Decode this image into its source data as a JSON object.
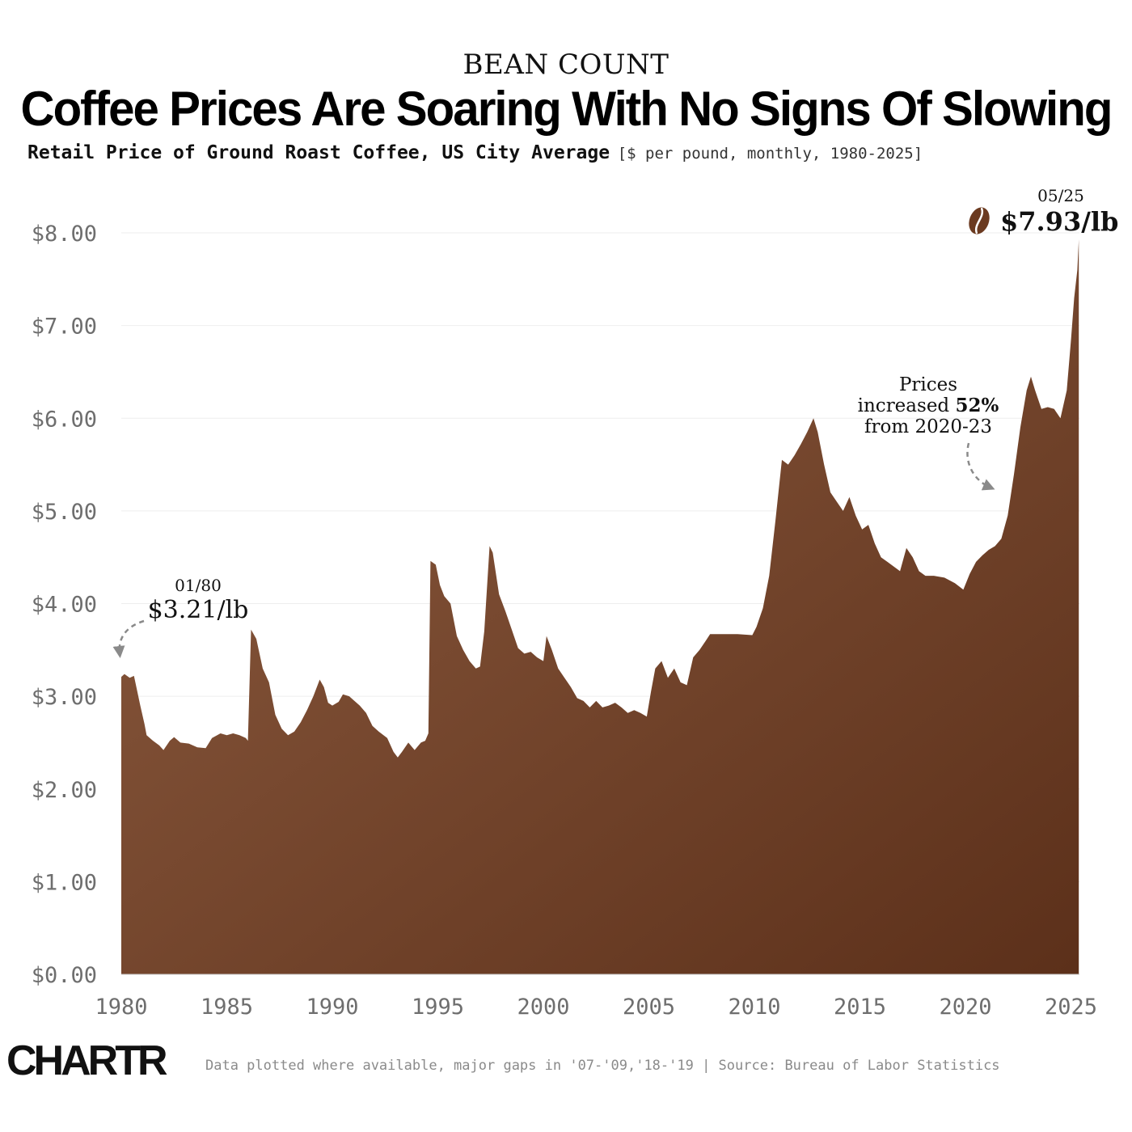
{
  "header": {
    "kicker": "BEAN COUNT",
    "title": "Coffee Prices Are Soaring With No Signs Of Slowing",
    "subtitle_main": "Retail Price of Ground Roast Coffee, US City Average",
    "subtitle_detail": "[$ per pound, monthly, 1980-2025]"
  },
  "footer": {
    "logo": "CHARTR",
    "note": "Data plotted where available, major gaps in '07-'09,'18-'19 | Source: Bureau of Labor Statistics"
  },
  "colors": {
    "fill_light": "#8e5d41",
    "fill_dark": "#5c301a",
    "bean": "#6b3a20",
    "gridline": "#eeeeee"
  },
  "chart_data": {
    "type": "area",
    "title": "Retail Price of Ground Roast Coffee, US City Average",
    "xlabel": "",
    "ylabel": "$ per pound",
    "xlim": [
      1980,
      2025.4
    ],
    "ylim": [
      0,
      8
    ],
    "yticks": [
      0,
      1,
      2,
      3,
      4,
      5,
      6,
      7,
      8
    ],
    "ytick_labels": [
      "$0.00",
      "$1.00",
      "$2.00",
      "$3.00",
      "$4.00",
      "$5.00",
      "$6.00",
      "$7.00",
      "$8.00"
    ],
    "xticks": [
      1980,
      1985,
      1990,
      1995,
      2000,
      2005,
      2010,
      2015,
      2020,
      2025
    ],
    "xtick_labels": [
      "1980",
      "1985",
      "1990",
      "1995",
      "2000",
      "2005",
      "2010",
      "2015",
      "2020",
      "2025"
    ],
    "series": [
      {
        "name": "Ground roast coffee ($/lb)",
        "points": [
          [
            1980.0,
            3.21
          ],
          [
            1980.15,
            3.24
          ],
          [
            1980.4,
            3.2
          ],
          [
            1980.6,
            3.22
          ],
          [
            1980.9,
            2.9
          ],
          [
            1981.1,
            2.7
          ],
          [
            1981.2,
            2.58
          ],
          [
            1981.5,
            2.52
          ],
          [
            1981.8,
            2.47
          ],
          [
            1982.0,
            2.42
          ],
          [
            1982.3,
            2.52
          ],
          [
            1982.5,
            2.56
          ],
          [
            1982.8,
            2.5
          ],
          [
            1983.2,
            2.49
          ],
          [
            1983.6,
            2.45
          ],
          [
            1984.0,
            2.44
          ],
          [
            1984.3,
            2.55
          ],
          [
            1984.7,
            2.6
          ],
          [
            1985.0,
            2.58
          ],
          [
            1985.3,
            2.6
          ],
          [
            1985.6,
            2.58
          ],
          [
            1985.9,
            2.55
          ],
          [
            1986.0,
            2.52
          ],
          [
            1986.15,
            3.72
          ],
          [
            1986.4,
            3.62
          ],
          [
            1986.7,
            3.3
          ],
          [
            1987.0,
            3.15
          ],
          [
            1987.3,
            2.8
          ],
          [
            1987.6,
            2.65
          ],
          [
            1987.9,
            2.58
          ],
          [
            1988.2,
            2.62
          ],
          [
            1988.5,
            2.72
          ],
          [
            1988.8,
            2.85
          ],
          [
            1989.1,
            3.0
          ],
          [
            1989.4,
            3.18
          ],
          [
            1989.6,
            3.1
          ],
          [
            1989.8,
            2.93
          ],
          [
            1990.0,
            2.9
          ],
          [
            1990.3,
            2.94
          ],
          [
            1990.5,
            3.02
          ],
          [
            1990.8,
            3.0
          ],
          [
            1991.0,
            2.96
          ],
          [
            1991.3,
            2.9
          ],
          [
            1991.6,
            2.82
          ],
          [
            1991.9,
            2.68
          ],
          [
            1992.2,
            2.62
          ],
          [
            1992.6,
            2.55
          ],
          [
            1992.9,
            2.4
          ],
          [
            1993.1,
            2.34
          ],
          [
            1993.3,
            2.4
          ],
          [
            1993.6,
            2.5
          ],
          [
            1993.9,
            2.42
          ],
          [
            1994.2,
            2.5
          ],
          [
            1994.4,
            2.52
          ],
          [
            1994.55,
            2.6
          ],
          [
            1994.65,
            4.46
          ],
          [
            1994.9,
            4.42
          ],
          [
            1995.1,
            4.2
          ],
          [
            1995.3,
            4.08
          ],
          [
            1995.6,
            4.0
          ],
          [
            1995.9,
            3.65
          ],
          [
            1996.2,
            3.5
          ],
          [
            1996.5,
            3.38
          ],
          [
            1996.8,
            3.3
          ],
          [
            1997.0,
            3.32
          ],
          [
            1997.2,
            3.7
          ],
          [
            1997.45,
            4.62
          ],
          [
            1997.6,
            4.55
          ],
          [
            1997.9,
            4.1
          ],
          [
            1998.2,
            3.92
          ],
          [
            1998.5,
            3.72
          ],
          [
            1998.8,
            3.52
          ],
          [
            1999.1,
            3.46
          ],
          [
            1999.4,
            3.48
          ],
          [
            1999.7,
            3.42
          ],
          [
            2000.0,
            3.38
          ],
          [
            2000.15,
            3.65
          ],
          [
            2000.4,
            3.5
          ],
          [
            2000.7,
            3.3
          ],
          [
            2001.0,
            3.2
          ],
          [
            2001.3,
            3.1
          ],
          [
            2001.6,
            2.98
          ],
          [
            2001.9,
            2.95
          ],
          [
            2002.2,
            2.88
          ],
          [
            2002.5,
            2.95
          ],
          [
            2002.8,
            2.88
          ],
          [
            2003.1,
            2.9
          ],
          [
            2003.4,
            2.93
          ],
          [
            2003.7,
            2.88
          ],
          [
            2004.0,
            2.82
          ],
          [
            2004.3,
            2.85
          ],
          [
            2004.6,
            2.82
          ],
          [
            2004.9,
            2.78
          ],
          [
            2005.1,
            3.05
          ],
          [
            2005.3,
            3.3
          ],
          [
            2005.6,
            3.38
          ],
          [
            2005.9,
            3.2
          ],
          [
            2006.2,
            3.3
          ],
          [
            2006.5,
            3.15
          ],
          [
            2006.8,
            3.12
          ],
          [
            2007.1,
            3.42
          ],
          [
            2007.4,
            3.5
          ],
          [
            2007.7,
            3.6
          ],
          [
            2007.9,
            3.67
          ],
          [
            2008.5,
            3.67
          ],
          [
            2009.2,
            3.67
          ],
          [
            2009.9,
            3.66
          ],
          [
            2010.1,
            3.75
          ],
          [
            2010.4,
            3.95
          ],
          [
            2010.7,
            4.3
          ],
          [
            2011.0,
            4.9
          ],
          [
            2011.3,
            5.55
          ],
          [
            2011.6,
            5.5
          ],
          [
            2011.9,
            5.6
          ],
          [
            2012.2,
            5.72
          ],
          [
            2012.5,
            5.85
          ],
          [
            2012.8,
            6.0
          ],
          [
            2013.0,
            5.85
          ],
          [
            2013.3,
            5.5
          ],
          [
            2013.6,
            5.2
          ],
          [
            2013.9,
            5.1
          ],
          [
            2014.2,
            5.0
          ],
          [
            2014.5,
            5.15
          ],
          [
            2014.8,
            4.95
          ],
          [
            2015.1,
            4.8
          ],
          [
            2015.4,
            4.85
          ],
          [
            2015.7,
            4.65
          ],
          [
            2016.0,
            4.5
          ],
          [
            2016.3,
            4.45
          ],
          [
            2016.6,
            4.4
          ],
          [
            2016.9,
            4.35
          ],
          [
            2017.2,
            4.6
          ],
          [
            2017.5,
            4.5
          ],
          [
            2017.8,
            4.35
          ],
          [
            2018.1,
            4.3
          ],
          [
            2018.5,
            4.3
          ],
          [
            2019.0,
            4.28
          ],
          [
            2019.5,
            4.22
          ],
          [
            2019.9,
            4.15
          ],
          [
            2020.2,
            4.32
          ],
          [
            2020.5,
            4.45
          ],
          [
            2020.8,
            4.52
          ],
          [
            2021.1,
            4.58
          ],
          [
            2021.4,
            4.62
          ],
          [
            2021.7,
            4.7
          ],
          [
            2022.0,
            4.95
          ],
          [
            2022.3,
            5.4
          ],
          [
            2022.6,
            5.9
          ],
          [
            2022.9,
            6.3
          ],
          [
            2023.1,
            6.45
          ],
          [
            2023.3,
            6.3
          ],
          [
            2023.6,
            6.1
          ],
          [
            2023.9,
            6.12
          ],
          [
            2024.2,
            6.1
          ],
          [
            2024.5,
            6.0
          ],
          [
            2024.8,
            6.3
          ],
          [
            2025.0,
            6.85
          ],
          [
            2025.15,
            7.3
          ],
          [
            2025.3,
            7.6
          ],
          [
            2025.37,
            7.93
          ]
        ]
      }
    ],
    "annotations": [
      {
        "id": "start",
        "date": "01/80",
        "value": "$3.21/lb"
      },
      {
        "id": "end",
        "date": "05/25",
        "value": "$7.93/lb"
      },
      {
        "id": "increase",
        "line1": "Prices",
        "line2_pre": "increased ",
        "line2_bold": "52%",
        "line3": "from 2020-23"
      }
    ],
    "grid": true,
    "legend": "none"
  }
}
